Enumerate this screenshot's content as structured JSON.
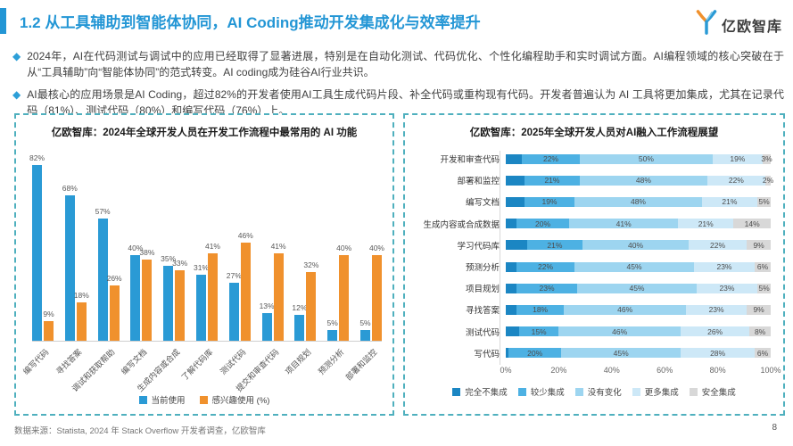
{
  "page": {
    "title": "1.2 从工具辅助到智能体协同，AI Coding推动开发集成化与效率提升",
    "logo_text": "亿欧智库",
    "bullets": [
      "2024年，AI在代码测试与调试中的应用已经取得了显著进展，特别是在自动化测试、代码优化、个性化编程助手和实时调试方面。AI编程领域的核心突破在于从“工具辅助”向“智能体协同”的范式转变。AI coding成为硅谷AI行业共识。",
      "AI最核心的应用场景是AI Coding，超过82%的开发者使用AI工具生成代码片段、补全代码或重构现有代码。开发者普遍认为 AI 工具将更加集成，尤其在记录代码（81%）、测试代码（80%）和编写代码（76%）上。"
    ],
    "footer_source": "数据来源：Statista, 2024 年 Stack Overflow 开发者调查，亿欧智库",
    "page_number": "8"
  },
  "colors": {
    "accent_blue": "#2396D5",
    "panel_border": "#4FB0BE",
    "bar_blue": "#2A9AD5",
    "bar_orange": "#F0912D"
  },
  "chart_data": [
    {
      "type": "bar",
      "title": "亿欧智库：2024年全球开发人员在开发工作流程中最常用的 AI 功能",
      "categories": [
        "编写代码",
        "寻找答案",
        "调试和获取帮助",
        "编写文档",
        "生成内容或合成",
        "了解代码库",
        "测试代码",
        "提交和审查代码",
        "项目规划",
        "预测分析",
        "部署和监控"
      ],
      "series": [
        {
          "name": "当前使用",
          "color": "#2A9AD5",
          "values": [
            82,
            68,
            57,
            40,
            35,
            31,
            27,
            13,
            12,
            5,
            5
          ]
        },
        {
          "name": "感兴趣使用 (%)",
          "color": "#F0912D",
          "values": [
            9,
            18,
            26,
            38,
            33,
            41,
            46,
            41,
            32,
            40,
            40
          ]
        }
      ],
      "value_suffix": "%",
      "ylim": [
        0,
        88
      ],
      "grid": false,
      "legend_position": "bottom"
    },
    {
      "type": "stacked-bar-horizontal",
      "title": "亿欧智库：2025年全球开发人员对AI融入工作流程展望",
      "categories": [
        "开发和审查代码",
        "部署和监控",
        "编写文档",
        "生成内容或合成数据",
        "学习代码库",
        "预测分析",
        "项目规划",
        "寻找答案",
        "测试代码",
        "写代码"
      ],
      "series_names": [
        "完全不集成",
        "较少集成",
        "没有变化",
        "更多集成",
        "安全集成"
      ],
      "series_colors": [
        "#1B86C3",
        "#4DB1E3",
        "#9DD5F0",
        "#CDE8F7",
        "#D8D8D8"
      ],
      "rows": [
        {
          "label": "开发和审查代码",
          "values": [
            6,
            22,
            50,
            19,
            3
          ]
        },
        {
          "label": "部署和监控",
          "values": [
            7,
            21,
            48,
            22,
            2
          ]
        },
        {
          "label": "编写文档",
          "values": [
            7,
            19,
            48,
            21,
            5
          ]
        },
        {
          "label": "生成内容或合成数据",
          "values": [
            4,
            20,
            41,
            21,
            14
          ]
        },
        {
          "label": "学习代码库",
          "values": [
            8,
            21,
            40,
            22,
            9
          ]
        },
        {
          "label": "预测分析",
          "values": [
            4,
            22,
            45,
            23,
            6
          ]
        },
        {
          "label": "项目规划",
          "values": [
            4,
            23,
            45,
            23,
            5
          ]
        },
        {
          "label": "寻找答案",
          "values": [
            4,
            18,
            46,
            23,
            9
          ]
        },
        {
          "label": "测试代码",
          "values": [
            5,
            15,
            46,
            26,
            8
          ]
        },
        {
          "label": "写代码",
          "values": [
            1,
            20,
            45,
            28,
            6
          ]
        }
      ],
      "first_segment_label_hidden": true,
      "value_suffix": "%",
      "x_ticks": [
        "0%",
        "20%",
        "40%",
        "60%",
        "80%",
        "100%"
      ],
      "xlim": [
        0,
        100
      ],
      "grid": false,
      "legend_position": "bottom"
    }
  ]
}
